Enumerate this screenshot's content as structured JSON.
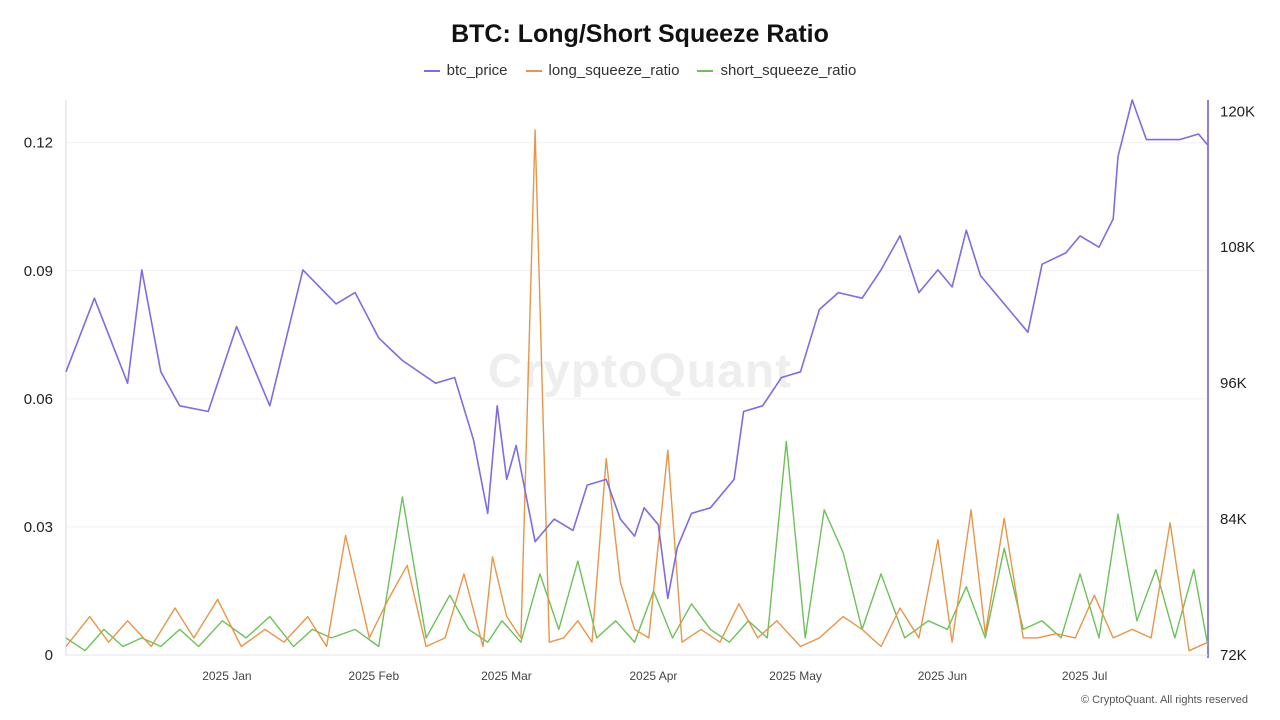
{
  "chart_data": {
    "type": "line",
    "title": "BTC: Long/Short Squeeze Ratio",
    "legend_placement": "top",
    "grid": true,
    "x_tick_labels": [
      "2025 Jan",
      "2025 Feb",
      "2025 Mar",
      "2025 Apr",
      "2025 May",
      "2025 Jun",
      "2025 Jul"
    ],
    "x_ticks": [
      "2025-01-01",
      "2025-02-01",
      "2025-03-01",
      "2025-04-01",
      "2025-05-01",
      "2025-06-01",
      "2025-07-01"
    ],
    "x_range": [
      "2024-12-01",
      "2025-07-30"
    ],
    "y_left": {
      "ticks": [
        0,
        0.03,
        0.06,
        0.09,
        0.12
      ],
      "tick_labels": [
        "0",
        "0.03",
        "0.06",
        "0.09",
        "0.12"
      ],
      "range": [
        0,
        0.13
      ]
    },
    "y_right": {
      "ticks": [
        72000,
        84000,
        96000,
        108000,
        120000
      ],
      "tick_labels": [
        "72K",
        "84K",
        "96K",
        "108K",
        "120K"
      ],
      "range": [
        72000,
        121000
      ]
    },
    "colors": {
      "btc_price": "#7b6ee0",
      "long_squeeze_ratio": "#e8954a",
      "short_squeeze_ratio": "#6cc15a"
    },
    "series": [
      {
        "name": "btc_price",
        "axis": "right",
        "x": [
          "2024-12-01",
          "2024-12-07",
          "2024-12-14",
          "2024-12-17",
          "2024-12-21",
          "2024-12-25",
          "2024-12-31",
          "2025-01-06",
          "2025-01-13",
          "2025-01-20",
          "2025-01-27",
          "2025-01-31",
          "2025-02-05",
          "2025-02-10",
          "2025-02-17",
          "2025-02-21",
          "2025-02-25",
          "2025-02-28",
          "2025-03-02",
          "2025-03-04",
          "2025-03-06",
          "2025-03-10",
          "2025-03-14",
          "2025-03-18",
          "2025-03-21",
          "2025-03-25",
          "2025-03-28",
          "2025-03-31",
          "2025-04-02",
          "2025-04-05",
          "2025-04-07",
          "2025-04-09",
          "2025-04-12",
          "2025-04-16",
          "2025-04-21",
          "2025-04-23",
          "2025-04-27",
          "2025-05-01",
          "2025-05-05",
          "2025-05-09",
          "2025-05-13",
          "2025-05-18",
          "2025-05-22",
          "2025-05-26",
          "2025-05-30",
          "2025-06-03",
          "2025-06-06",
          "2025-06-09",
          "2025-06-12",
          "2025-06-17",
          "2025-06-22",
          "2025-06-25",
          "2025-06-30",
          "2025-07-03",
          "2025-07-07",
          "2025-07-10",
          "2025-07-11",
          "2025-07-14",
          "2025-07-17",
          "2025-07-20",
          "2025-07-24",
          "2025-07-28",
          "2025-07-30"
        ],
        "values": [
          97000,
          103500,
          96000,
          106000,
          97000,
          94000,
          93500,
          101000,
          94000,
          106000,
          103000,
          104000,
          100000,
          98000,
          96000,
          96500,
          91000,
          84500,
          94000,
          87500,
          90500,
          82000,
          84000,
          83000,
          87000,
          87500,
          84000,
          82500,
          85000,
          83500,
          77000,
          81500,
          84500,
          85000,
          87500,
          93500,
          94000,
          96500,
          97000,
          102500,
          104000,
          103500,
          106000,
          109000,
          104000,
          106000,
          104500,
          109500,
          105500,
          103000,
          100500,
          106500,
          107500,
          109000,
          108000,
          110500,
          116000,
          121000,
          117500,
          117500,
          117500,
          118000,
          117000
        ],
        "chart_kind": "line"
      },
      {
        "name": "long_squeeze_ratio",
        "axis": "left",
        "x": [
          "2024-12-01",
          "2024-12-06",
          "2024-12-10",
          "2024-12-14",
          "2024-12-19",
          "2024-12-24",
          "2024-12-28",
          "2025-01-02",
          "2025-01-07",
          "2025-01-12",
          "2025-01-16",
          "2025-01-21",
          "2025-01-25",
          "2025-01-29",
          "2025-02-03",
          "2025-02-07",
          "2025-02-11",
          "2025-02-15",
          "2025-02-19",
          "2025-02-23",
          "2025-02-27",
          "2025-03-01",
          "2025-03-04",
          "2025-03-07",
          "2025-03-10",
          "2025-03-13",
          "2025-03-16",
          "2025-03-19",
          "2025-03-22",
          "2025-03-25",
          "2025-03-28",
          "2025-03-31",
          "2025-04-03",
          "2025-04-07",
          "2025-04-10",
          "2025-04-14",
          "2025-04-18",
          "2025-04-22",
          "2025-04-26",
          "2025-04-30",
          "2025-05-05",
          "2025-05-09",
          "2025-05-14",
          "2025-05-18",
          "2025-05-22",
          "2025-05-26",
          "2025-05-30",
          "2025-06-03",
          "2025-06-06",
          "2025-06-10",
          "2025-06-13",
          "2025-06-17",
          "2025-06-21",
          "2025-06-24",
          "2025-06-28",
          "2025-07-02",
          "2025-07-06",
          "2025-07-10",
          "2025-07-14",
          "2025-07-18",
          "2025-07-22",
          "2025-07-26",
          "2025-07-30"
        ],
        "values": [
          0.002,
          0.009,
          0.003,
          0.008,
          0.002,
          0.011,
          0.004,
          0.013,
          0.002,
          0.006,
          0.003,
          0.009,
          0.002,
          0.028,
          0.004,
          0.013,
          0.021,
          0.002,
          0.004,
          0.019,
          0.002,
          0.023,
          0.009,
          0.004,
          0.123,
          0.003,
          0.004,
          0.008,
          0.003,
          0.046,
          0.017,
          0.006,
          0.004,
          0.048,
          0.003,
          0.006,
          0.003,
          0.012,
          0.004,
          0.008,
          0.002,
          0.004,
          0.009,
          0.006,
          0.002,
          0.011,
          0.004,
          0.027,
          0.003,
          0.034,
          0.005,
          0.032,
          0.004,
          0.004,
          0.005,
          0.004,
          0.014,
          0.004,
          0.006,
          0.004,
          0.031,
          0.001,
          0.003
        ],
        "chart_kind": "line"
      },
      {
        "name": "short_squeeze_ratio",
        "axis": "left",
        "x": [
          "2024-12-01",
          "2024-12-05",
          "2024-12-09",
          "2024-12-13",
          "2024-12-17",
          "2024-12-21",
          "2024-12-25",
          "2024-12-29",
          "2025-01-03",
          "2025-01-08",
          "2025-01-13",
          "2025-01-18",
          "2025-01-22",
          "2025-01-26",
          "2025-01-31",
          "2025-02-05",
          "2025-02-10",
          "2025-02-15",
          "2025-02-20",
          "2025-02-24",
          "2025-02-28",
          "2025-03-03",
          "2025-03-07",
          "2025-03-11",
          "2025-03-15",
          "2025-03-19",
          "2025-03-23",
          "2025-03-27",
          "2025-03-31",
          "2025-04-04",
          "2025-04-08",
          "2025-04-12",
          "2025-04-16",
          "2025-04-20",
          "2025-04-24",
          "2025-04-28",
          "2025-05-02",
          "2025-05-06",
          "2025-05-10",
          "2025-05-14",
          "2025-05-18",
          "2025-05-22",
          "2025-05-27",
          "2025-06-01",
          "2025-06-05",
          "2025-06-09",
          "2025-06-13",
          "2025-06-17",
          "2025-06-21",
          "2025-06-25",
          "2025-06-29",
          "2025-07-03",
          "2025-07-07",
          "2025-07-11",
          "2025-07-15",
          "2025-07-19",
          "2025-07-23",
          "2025-07-27",
          "2025-07-30"
        ],
        "values": [
          0.004,
          0.001,
          0.006,
          0.002,
          0.004,
          0.002,
          0.006,
          0.002,
          0.008,
          0.004,
          0.009,
          0.002,
          0.006,
          0.004,
          0.006,
          0.002,
          0.037,
          0.004,
          0.014,
          0.006,
          0.003,
          0.008,
          0.003,
          0.019,
          0.006,
          0.022,
          0.004,
          0.008,
          0.003,
          0.015,
          0.004,
          0.012,
          0.006,
          0.003,
          0.008,
          0.004,
          0.05,
          0.004,
          0.034,
          0.024,
          0.006,
          0.019,
          0.004,
          0.008,
          0.006,
          0.016,
          0.004,
          0.025,
          0.006,
          0.008,
          0.004,
          0.019,
          0.004,
          0.033,
          0.008,
          0.02,
          0.004,
          0.02,
          0.002
        ],
        "chart_kind": "line"
      }
    ]
  },
  "watermark": "CryptoQuant",
  "footer": "© CryptoQuant. All rights reserved"
}
